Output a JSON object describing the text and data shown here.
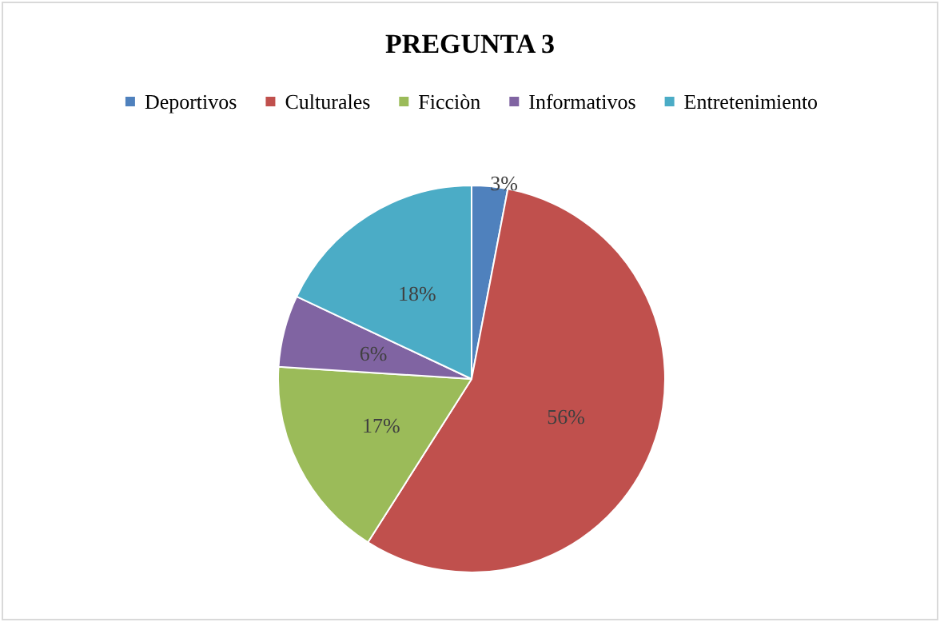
{
  "chart_data": {
    "type": "pie",
    "title": "PREGUNTA 3",
    "categories": [
      "Deportivos",
      "Culturales",
      "Ficciòn",
      "Informativos",
      "Entretenimiento"
    ],
    "values": [
      3,
      56,
      17,
      6,
      18
    ],
    "colors": [
      "#4f81bd",
      "#c0504d",
      "#9bbb59",
      "#8064a2",
      "#4bacc6"
    ],
    "value_labels": [
      "3%",
      "56%",
      "17%",
      "6%",
      "18%"
    ],
    "legend": "top"
  }
}
